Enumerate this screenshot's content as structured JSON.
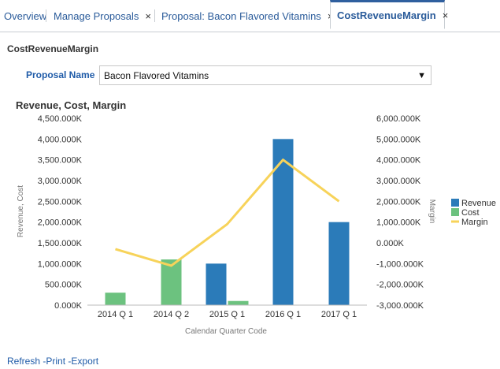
{
  "tabs": [
    {
      "label": "Overview",
      "closable": false
    },
    {
      "label": "Manage Proposals",
      "closable": true
    },
    {
      "label": "Proposal: Bacon Flavored Vitamins",
      "closable": true
    },
    {
      "label": "CostRevenueMargin",
      "closable": true,
      "active": true
    }
  ],
  "close_glyph": "×",
  "page_title": "CostRevenueMargin",
  "prompt": {
    "label": "Proposal Name",
    "value": "Bacon Flavored Vitamins",
    "arrow": "▼"
  },
  "footer": {
    "refresh": "Refresh",
    "print": "Print",
    "export": "Export",
    "sep": "-"
  },
  "colors": {
    "revenue": "#2b7bb9",
    "cost": "#6cc27f",
    "margin": "#f7d35a",
    "link": "#1f5ba8"
  },
  "chart_data": {
    "type": "bar",
    "title": "Revenue, Cost, Margin",
    "xlabel": "Calendar Quarter Code",
    "ylabel": "Revenue, Cost",
    "y2label": "Margin",
    "categories": [
      "2014 Q 1",
      "2014 Q 2",
      "2015 Q 1",
      "2016 Q 1",
      "2017 Q 1"
    ],
    "ylim": [
      0,
      4500000
    ],
    "y2lim": [
      -3000000,
      6000000
    ],
    "yticks": [
      "4,500.000K",
      "4,000.000K",
      "3,500.000K",
      "3,000.000K",
      "2,500.000K",
      "2,000.000K",
      "1,500.000K",
      "1,000.000K",
      "500.000K",
      "0.000K"
    ],
    "y2ticks": [
      "6,000.000K",
      "5,000.000K",
      "4,000.000K",
      "3,000.000K",
      "2,000.000K",
      "1,000.000K",
      "0.000K",
      "-1,000.000K",
      "-2,000.000K",
      "-3,000.000K"
    ],
    "series": [
      {
        "name": "Revenue",
        "axis": "left",
        "kind": "bar",
        "values": [
          0,
          0,
          1000000,
          4000000,
          2000000
        ]
      },
      {
        "name": "Cost",
        "axis": "left",
        "kind": "bar",
        "values": [
          300000,
          1100000,
          100000,
          0,
          0
        ]
      },
      {
        "name": "Margin",
        "axis": "right",
        "kind": "line",
        "values": [
          -300000,
          -1100000,
          900000,
          4000000,
          2000000
        ]
      }
    ],
    "legend_position": "right",
    "grid": false
  }
}
